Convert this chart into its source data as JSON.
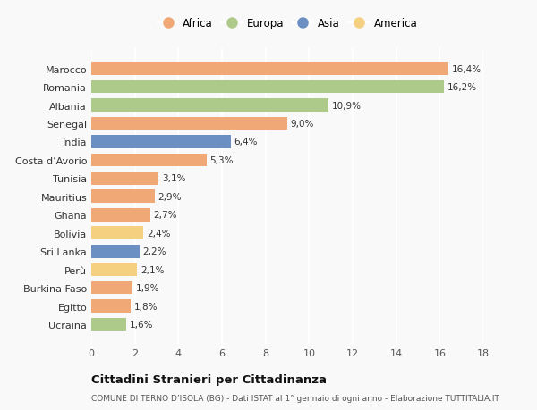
{
  "categories": [
    "Ucraina",
    "Egitto",
    "Burkina Faso",
    "Perù",
    "Sri Lanka",
    "Bolivia",
    "Ghana",
    "Mauritius",
    "Tunisia",
    "Costa d’Avorio",
    "India",
    "Senegal",
    "Albania",
    "Romania",
    "Marocco"
  ],
  "values": [
    1.6,
    1.8,
    1.9,
    2.1,
    2.2,
    2.4,
    2.7,
    2.9,
    3.1,
    5.3,
    6.4,
    9.0,
    10.9,
    16.2,
    16.4
  ],
  "labels": [
    "1,6%",
    "1,8%",
    "1,9%",
    "2,1%",
    "2,2%",
    "2,4%",
    "2,7%",
    "2,9%",
    "3,1%",
    "5,3%",
    "6,4%",
    "9,0%",
    "10,9%",
    "16,2%",
    "16,4%"
  ],
  "continents": [
    "Europa",
    "Africa",
    "Africa",
    "America",
    "Asia",
    "America",
    "Africa",
    "Africa",
    "Africa",
    "Africa",
    "Asia",
    "Africa",
    "Europa",
    "Europa",
    "Africa"
  ],
  "colors": {
    "Africa": "#F0A876",
    "Europa": "#AECA8A",
    "Asia": "#6B8FC2",
    "America": "#F5D080"
  },
  "legend_order": [
    "Africa",
    "Europa",
    "Asia",
    "America"
  ],
  "title": "Cittadini Stranieri per Cittadinanza",
  "subtitle": "COMUNE DI TERNO D’ISOLA (BG) - Dati ISTAT al 1° gennaio di ogni anno - Elaborazione TUTTITALIA.IT",
  "xlim": [
    0,
    18
  ],
  "xticks": [
    0,
    2,
    4,
    6,
    8,
    10,
    12,
    14,
    16,
    18
  ],
  "background_color": "#f9f9f9",
  "grid_color": "#ffffff",
  "bar_height": 0.72
}
